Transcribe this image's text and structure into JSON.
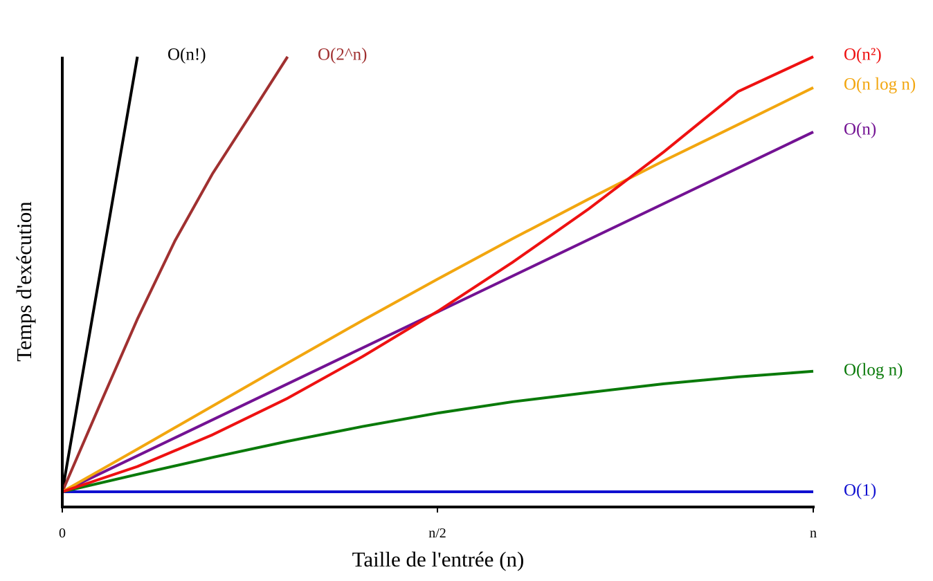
{
  "chart_data": {
    "type": "line",
    "xlabel": "Taille de l'entrée (n)",
    "ylabel": "Temps d'exécution",
    "x_ticks": [
      "0",
      "n/2",
      "n"
    ],
    "xlim": [
      0,
      1
    ],
    "ylim": [
      0,
      1
    ],
    "grid": false,
    "legend": "labels at line ends",
    "series": [
      {
        "name": "O(1)",
        "color": "#1010d0",
        "x": [
          0,
          1
        ],
        "y": [
          0,
          0
        ]
      },
      {
        "name": "O(log n)",
        "color": "#0a7a0a",
        "x": [
          0,
          0.1,
          0.2,
          0.3,
          0.4,
          0.5,
          0.6,
          0.7,
          0.8,
          0.9,
          1.0
        ],
        "y": [
          0,
          0.04,
          0.079,
          0.116,
          0.15,
          0.181,
          0.207,
          0.228,
          0.248,
          0.264,
          0.277
        ]
      },
      {
        "name": "O(n)",
        "color": "#731293",
        "x": [
          0,
          1
        ],
        "y": [
          0,
          0.827
        ]
      },
      {
        "name": "O(n log n)",
        "color": "#f2a60f",
        "x": [
          0,
          0.1,
          0.2,
          0.3,
          0.4,
          0.5,
          0.6,
          0.7,
          0.8,
          0.9,
          1.0
        ],
        "y": [
          0,
          0.098,
          0.197,
          0.296,
          0.394,
          0.489,
          0.582,
          0.672,
          0.76,
          0.844,
          0.929
        ]
      },
      {
        "name": "O(n²)",
        "color": "#ee1111",
        "x": [
          0,
          0.1,
          0.2,
          0.3,
          0.4,
          0.5,
          0.6,
          0.7,
          0.8,
          0.9,
          1.0
        ],
        "y": [
          0,
          0.058,
          0.131,
          0.215,
          0.311,
          0.415,
          0.528,
          0.649,
          0.78,
          0.92,
          1.0
        ]
      },
      {
        "name": "O(2^n)",
        "color": "#a03030",
        "x": [
          0,
          0.05,
          0.1,
          0.15,
          0.2,
          0.25,
          0.3
        ],
        "y": [
          0,
          0.2,
          0.397,
          0.577,
          0.731,
          0.865,
          1.0
        ]
      },
      {
        "name": "O(n!)",
        "color": "#000000",
        "x": [
          0,
          0.1
        ],
        "y": [
          0,
          1.0
        ]
      }
    ]
  }
}
